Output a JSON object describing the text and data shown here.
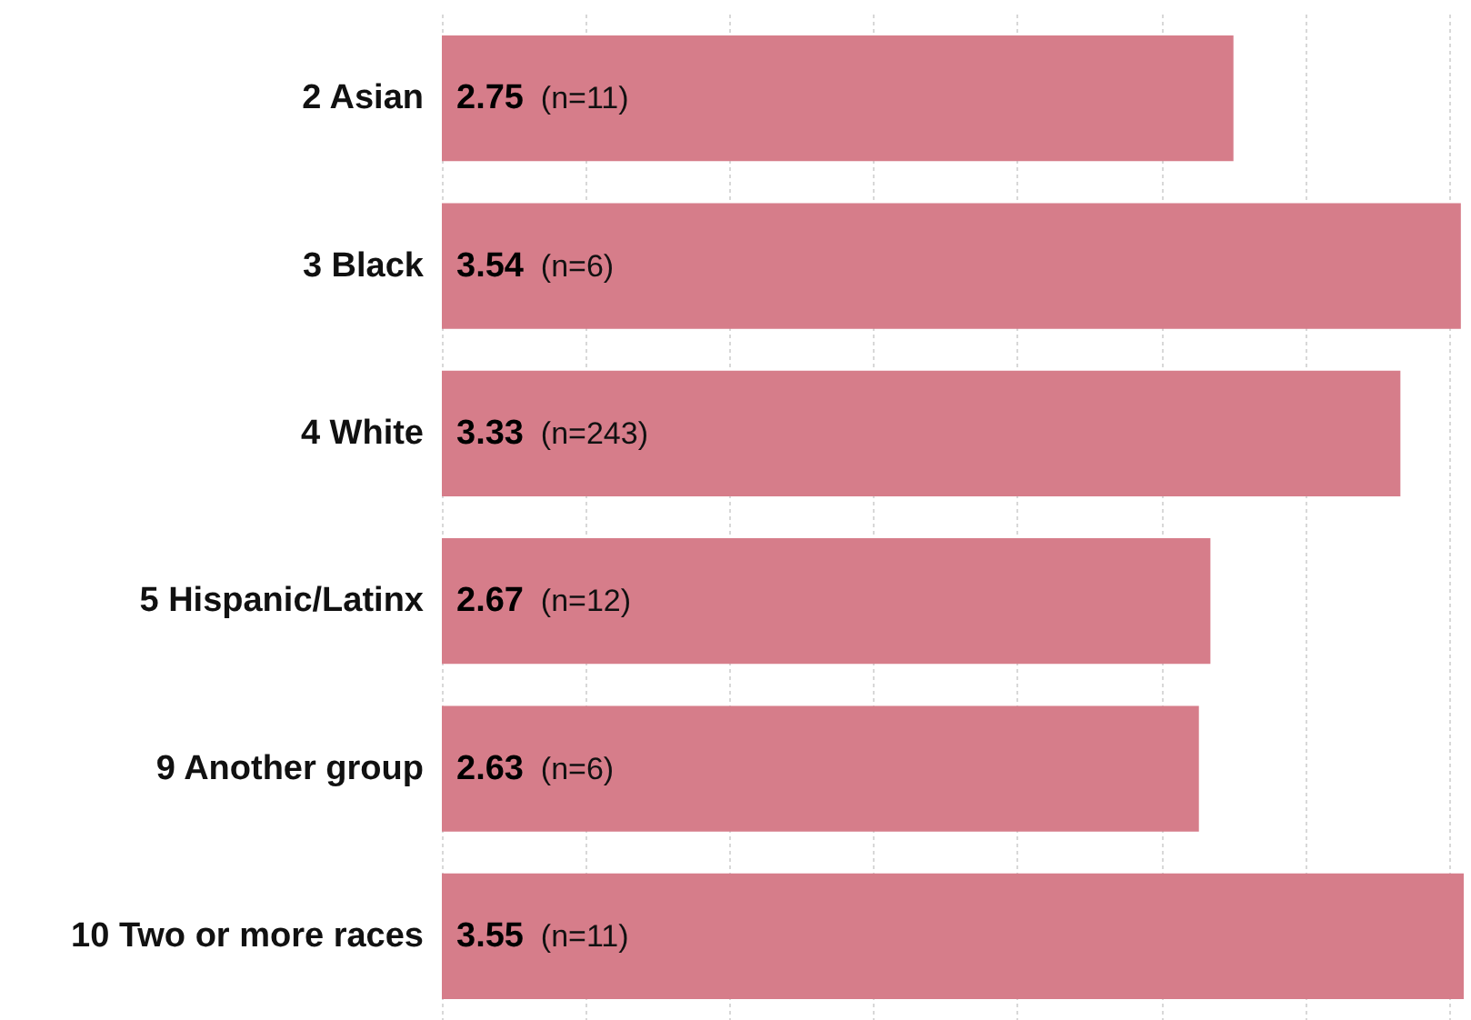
{
  "chart_data": {
    "type": "bar",
    "orientation": "horizontal",
    "categories": [
      "2 Asian",
      "3 Black",
      "4 White",
      "5 Hispanic/Latinx",
      "9 Another group",
      "10 Two or more races"
    ],
    "values": [
      2.75,
      3.54,
      3.33,
      2.67,
      2.63,
      3.55
    ],
    "value_labels": [
      "2.75 (n=11)",
      "3.54 (n=6)",
      "3.33 (n=243)",
      "2.67 (n=12)",
      "2.63 (n=6)",
      "3.55 (n=11)"
    ],
    "color": "#d67d8a",
    "xlim": [
      0,
      3.55
    ],
    "xticks": [
      {
        "value": 0,
        "label": null
      },
      {
        "value": 0.5,
        "label": null
      },
      {
        "value": 1,
        "label": null
      },
      {
        "value": 1.5,
        "label": null
      },
      {
        "value": 2,
        "label": null
      },
      {
        "value": 2.5,
        "label": null
      },
      {
        "value": 3,
        "label": null
      },
      {
        "value": 3.5,
        "label": null
      }
    ],
    "tick_labels": "y",
    "grid": "x"
  }
}
